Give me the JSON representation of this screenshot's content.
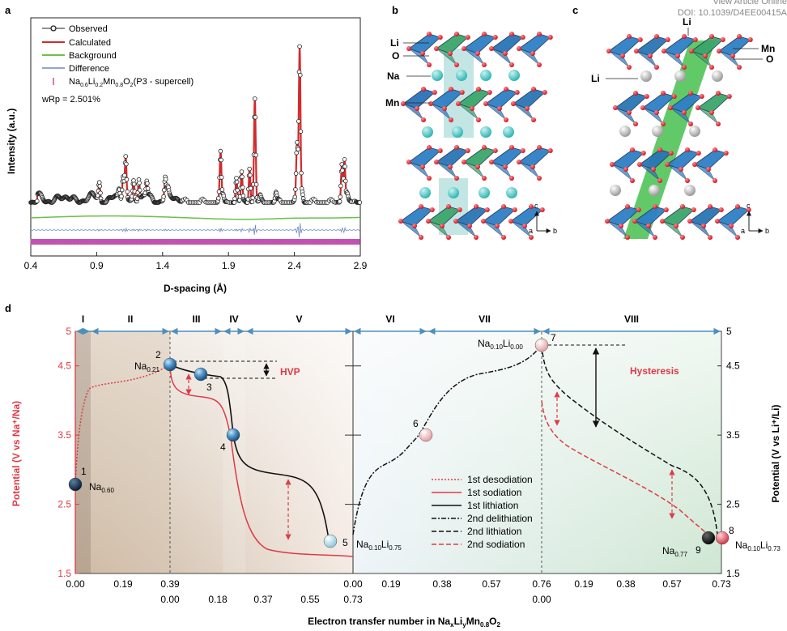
{
  "header": {
    "view_article": "View Article Online",
    "doi": "DOI: 10.1039/D4EE00415A"
  },
  "panel_letters": {
    "a": "a",
    "b": "b",
    "c": "c",
    "d": "d"
  },
  "panel_a": {
    "legend": {
      "observed": "Observed",
      "calculated": "Calculated",
      "background": "Background",
      "difference": "Difference",
      "phase_pre": "Na",
      "phase_s1": "0.6",
      "phase_mid1": "Li",
      "phase_s2": "0.2",
      "phase_mid2": "Mn",
      "phase_s3": "0.8",
      "phase_mid3": "O",
      "phase_s4": "2",
      "phase_post": "(P3 - supercell)",
      "wrp": "wRp = 2.501%"
    },
    "colors": {
      "observed": "#222222",
      "calculated": "#d42a2a",
      "background": "#6cc04a",
      "difference": "#6f86c4",
      "ticks": "#c050b0"
    }
  },
  "panel_b": {
    "labels": {
      "li": "Li",
      "o": "O",
      "na": "Na",
      "mn": "Mn"
    },
    "axes": {
      "c": "c",
      "a": "a",
      "b": "b"
    }
  },
  "panel_c": {
    "labels": {
      "li_top": "Li",
      "mn": "Mn",
      "o": "O",
      "li": "Li"
    },
    "axes": {
      "c": "c",
      "a": "a",
      "b": "b"
    }
  },
  "panel_d": {
    "regions": [
      "I",
      "II",
      "III",
      "IV",
      "V",
      "VI",
      "VII",
      "VIII"
    ],
    "ylabel_left": "Potential (V vs Na⁺/Na)",
    "ylabel_right": "Potential (V vs Li⁺/Li)",
    "xlabel_pre": "Electron transfer number in Na",
    "xlabel_s1": "x",
    "xlabel_mid1": "Li",
    "xlabel_s2": "y",
    "xlabel_mid2": "Mn",
    "xlabel_s3": "0.8",
    "xlabel_mid3": "O",
    "xlabel_s4": "2",
    "hvp": "HVP",
    "hysteresis": "Hysteresis",
    "points": [
      {
        "num": "1",
        "label": "Na",
        "sub": "0.60"
      },
      {
        "num": "2",
        "label": "Na",
        "sub": "0.21"
      },
      {
        "num": "3"
      },
      {
        "num": "4"
      },
      {
        "num": "5",
        "label": "Na",
        "sub": "0.10",
        "label2": "Li",
        "sub2": "0.75"
      },
      {
        "num": "6"
      },
      {
        "num": "7",
        "label": "Na",
        "sub": "0.10",
        "label2": "Li",
        "sub2": "0.00"
      },
      {
        "num": "8",
        "label": "Na",
        "sub": "0.10",
        "label2": "Li",
        "sub2": "0.73"
      },
      {
        "num": "9",
        "label": "Na",
        "sub": "0.77"
      }
    ],
    "legend": [
      "1st desodiation",
      "1st sodiation",
      "1st lithiation",
      "2nd delithiation",
      "2nd lithiation",
      "2nd sodiation"
    ],
    "colors": {
      "sodium": "#dd3b46",
      "lithium": "#111111"
    }
  },
  "chart_data": [
    {
      "type": "line",
      "xlabel": "D-spacing (Å)",
      "ylabel": "Intensity (a.u.)",
      "xlim": [
        0.4,
        2.9
      ],
      "xticks": [
        "0.4",
        "0.9",
        "1.4",
        "1.9",
        "2.4",
        "2.9"
      ],
      "series": [
        {
          "name": "Observed",
          "style": "circles",
          "x": [
            0.4,
            0.9,
            0.92,
            1.07,
            1.1,
            1.12,
            1.18,
            1.22,
            1.28,
            1.42,
            1.44,
            1.84,
            1.86,
            1.96,
            2.0,
            2.06,
            2.1,
            2.14,
            2.26,
            2.42,
            2.44,
            2.46,
            2.76,
            2.78,
            2.8,
            2.9
          ],
          "y": [
            0,
            0,
            0.09,
            0.05,
            0.12,
            0.22,
            0.1,
            0.12,
            0.08,
            0.11,
            0.04,
            0.26,
            0.04,
            0.12,
            0.16,
            0.2,
            0.55,
            0.03,
            0.05,
            0.3,
            0.84,
            0.06,
            0.22,
            0.24,
            0.04,
            0
          ]
        },
        {
          "name": "Calculated",
          "style": "line"
        },
        {
          "name": "Background",
          "style": "line"
        },
        {
          "name": "Difference",
          "style": "line"
        }
      ],
      "annotation": "wRp = 2.501%"
    },
    {
      "type": "line",
      "xlabel": "Electron transfer number in NaxLiyMn0.8O2",
      "ylabel_left": "Potential (V vs Na⁺/Na)",
      "ylabel_right": "Potential (V vs Li⁺/Li)",
      "ylim": [
        1.5,
        5.0
      ],
      "yticks": [
        "1.5",
        "2.5",
        "3.5",
        "4.5",
        "5"
      ],
      "xticks_upper": [
        "0.00",
        "0.19",
        "0.39",
        "0.19",
        "0.38",
        "0.57",
        "0.76",
        "0.19",
        "0.38",
        "0.57",
        "0.73"
      ],
      "xticks_lower": [
        "0.00",
        "0.18",
        "0.37",
        "0.55",
        "0.73",
        "0.00"
      ],
      "series": [
        {
          "name": "1st desodiation",
          "x": [
            0,
            0.02,
            0.06,
            0.39
          ],
          "y": [
            2.8,
            3.7,
            4.2,
            4.5
          ]
        },
        {
          "name": "1st sodiation",
          "x": [
            0,
            0.15,
            0.2,
            0.25,
            0.3,
            0.73
          ],
          "y": [
            4.5,
            4.05,
            3.55,
            2.9,
            2.0,
            1.65
          ]
        },
        {
          "name": "1st lithiation",
          "x": [
            0,
            0.1,
            0.2,
            0.25,
            0.3,
            0.73
          ],
          "y": [
            4.5,
            4.35,
            4.2,
            3.5,
            2.95,
            2.0
          ]
        },
        {
          "name": "2nd delithiation",
          "x": [
            0,
            0.19,
            0.38,
            0.57,
            0.76
          ],
          "y": [
            1.85,
            3.1,
            3.5,
            4.55,
            4.75
          ]
        },
        {
          "name": "2nd lithiation",
          "x": [
            0,
            0.19,
            0.38,
            0.57,
            0.73
          ],
          "y": [
            4.75,
            4.0,
            3.5,
            3.05,
            2.1
          ]
        },
        {
          "name": "2nd sodiation",
          "x": [
            0,
            0.19,
            0.38,
            0.57,
            0.73
          ],
          "y": [
            3.95,
            3.4,
            2.9,
            2.35,
            2.0
          ]
        }
      ],
      "regions": [
        "I",
        "II",
        "III",
        "IV",
        "V",
        "VI",
        "VII",
        "VIII"
      ]
    }
  ]
}
